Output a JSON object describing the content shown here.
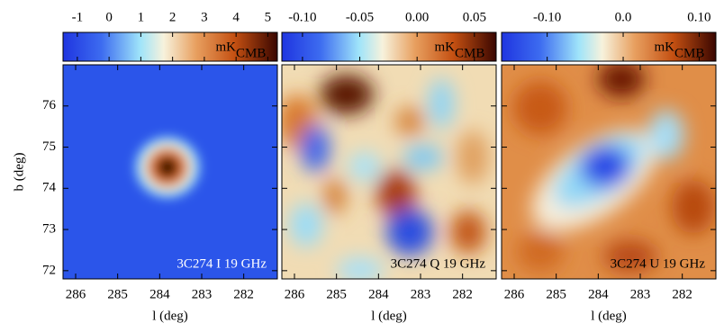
{
  "chart_data": [
    {
      "type": "heatmap",
      "colorbar_label": "mK",
      "colorbar_label_sub": "CMB",
      "colorbar_lim": [
        -1.45,
        5.3
      ],
      "colorbar_ticks": [
        -1,
        0,
        1,
        2,
        3,
        4,
        5
      ],
      "annotation": "3C274 I 19 GHz",
      "xlabel": "l (deg)",
      "ylabel": "b (deg)",
      "xlim": [
        286.3,
        281.2
      ],
      "xticks": [
        286,
        285,
        284,
        283,
        282
      ],
      "ylim": [
        71.8,
        77.0
      ],
      "yticks": [
        72,
        73,
        74,
        75,
        76
      ]
    },
    {
      "type": "heatmap",
      "colorbar_label": "mK",
      "colorbar_label_sub": "CMB",
      "colorbar_lim": [
        -0.118,
        0.069
      ],
      "colorbar_ticks": [
        {
          "value": -0.1,
          "label": "-0.10"
        },
        {
          "value": -0.05,
          "label": "-0.05"
        },
        {
          "value": 0,
          "label": "0.00"
        },
        {
          "value": 0.05,
          "label": "0.05"
        }
      ],
      "annotation": "3C274 Q 19 GHz",
      "xlabel": "l (deg)",
      "xlim": [
        286.3,
        281.2
      ],
      "xticks": [
        286,
        285,
        284,
        283,
        282
      ]
    },
    {
      "type": "heatmap",
      "colorbar_label": "mK",
      "colorbar_label_sub": "CMB",
      "colorbar_lim": [
        -0.16,
        0.122
      ],
      "colorbar_ticks": [
        {
          "value": -0.1,
          "label": "-0.10"
        },
        {
          "value": 0,
          "label": "0.0"
        },
        {
          "value": 0.1,
          "label": "0.10"
        }
      ],
      "annotation": "3C274 U 19 GHz",
      "xlabel": "l (deg)",
      "xlim": [
        286.3,
        281.2
      ],
      "xticks": [
        286,
        285,
        284,
        283,
        282
      ]
    }
  ]
}
